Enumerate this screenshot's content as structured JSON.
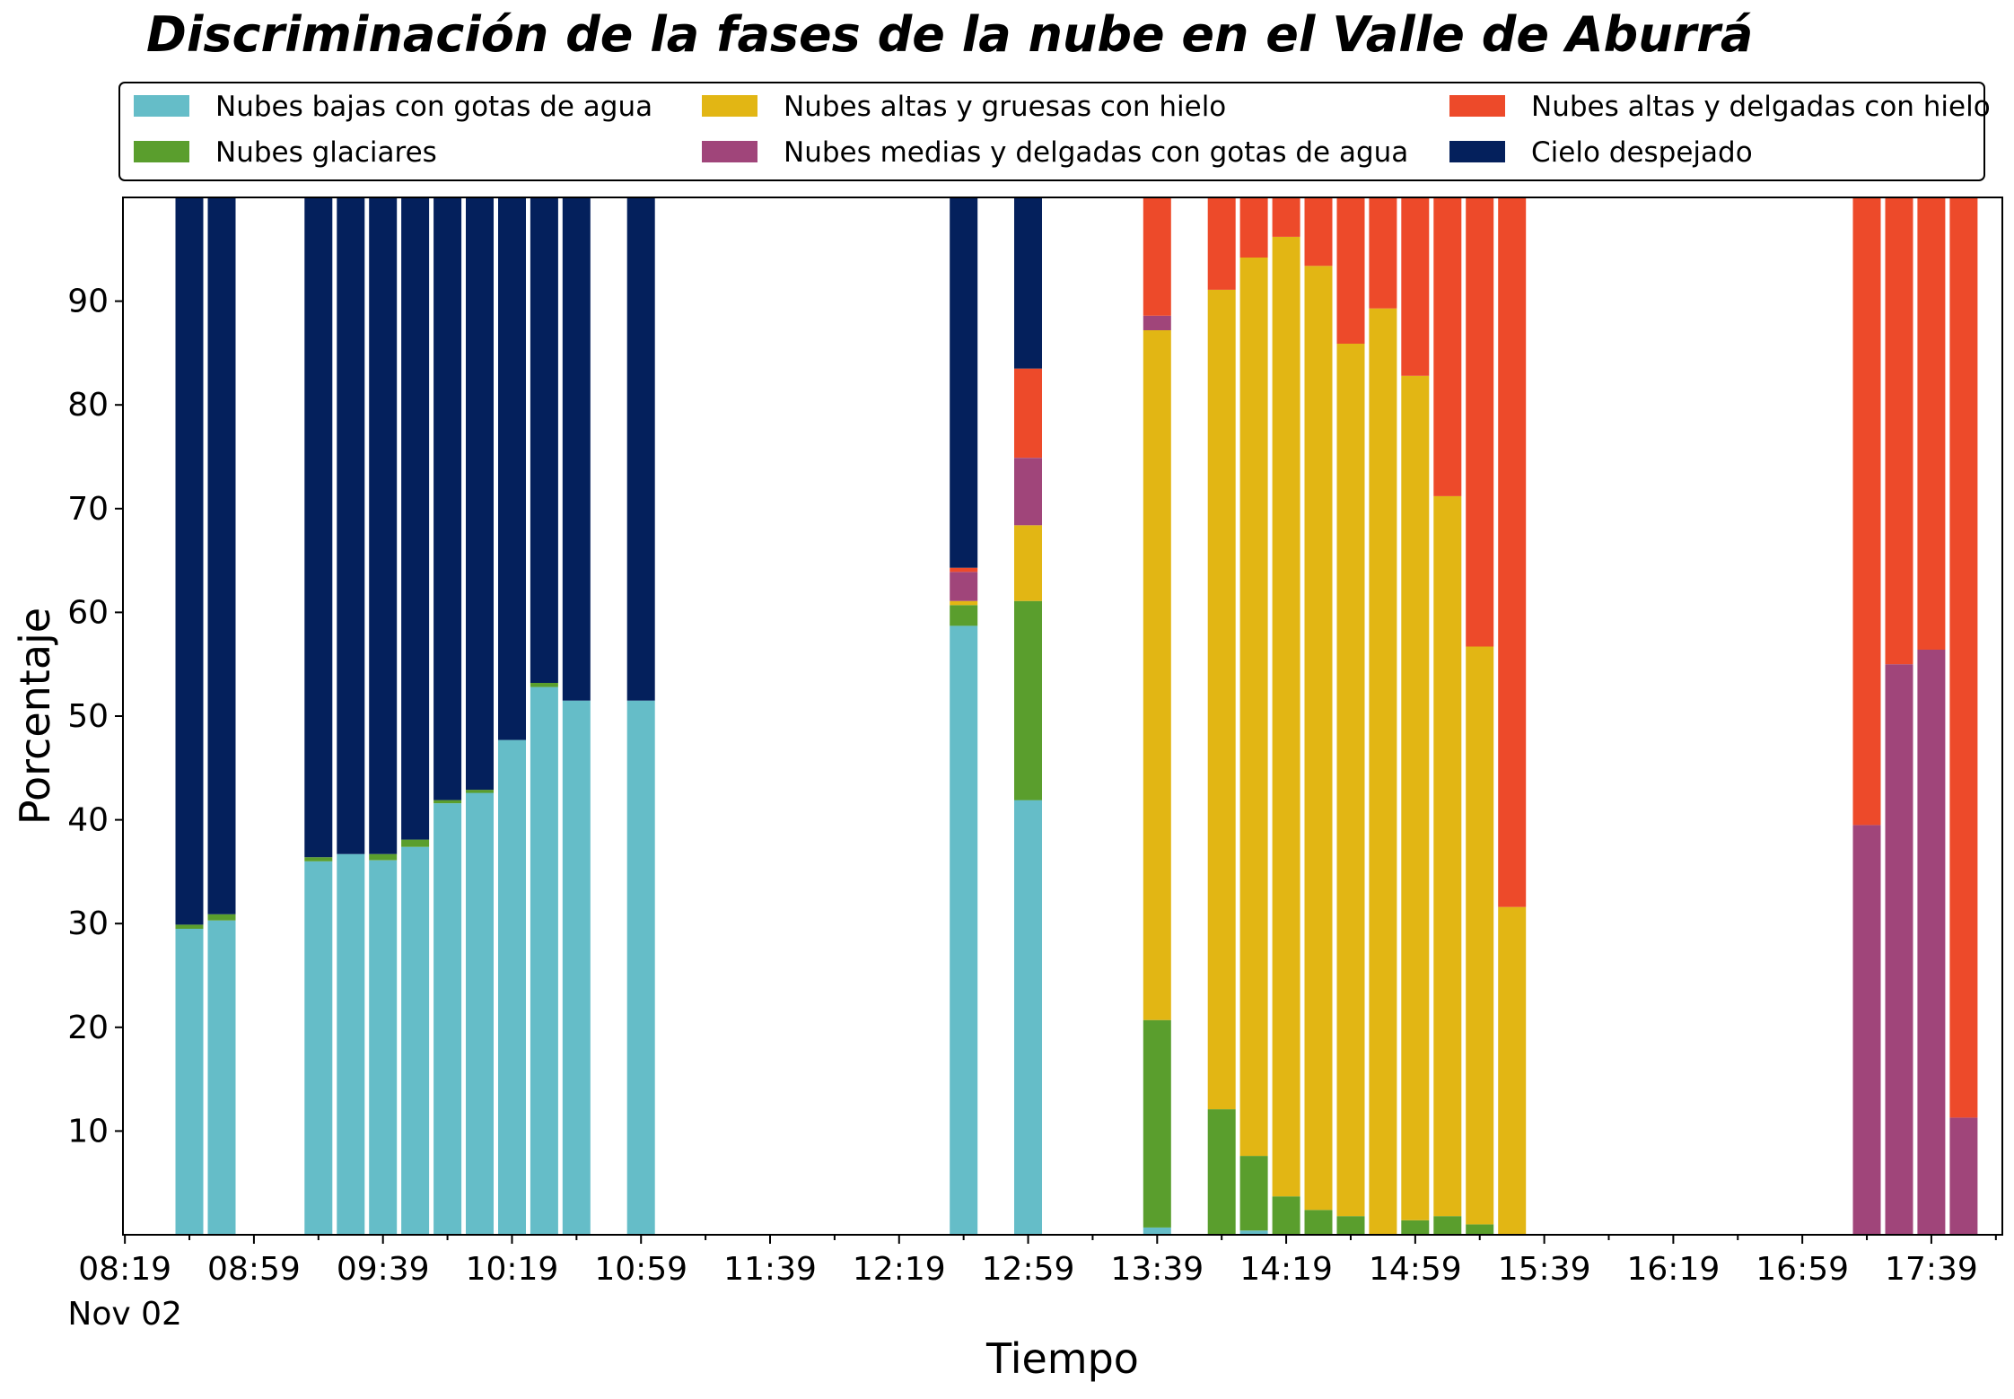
{
  "chart_data": {
    "type": "bar",
    "stacked": true,
    "title": "Discriminación de la fases de la nube en el Valle de Aburrá",
    "xlabel": "Tiempo",
    "ylabel": "Porcentaje",
    "ylim": [
      0,
      100
    ],
    "yticks": [
      10,
      20,
      30,
      40,
      50,
      60,
      70,
      80,
      90
    ],
    "xticks": [
      "08:19",
      "08:59",
      "09:39",
      "10:19",
      "10:59",
      "11:39",
      "12:19",
      "12:59",
      "13:39",
      "14:19",
      "14:59",
      "15:39",
      "16:19",
      "16:59",
      "17:39"
    ],
    "xtick_sublabel": "Nov 02",
    "grid": false,
    "legend_position": "top, above plot",
    "x": [
      "08:39",
      "08:49",
      "09:09",
      "09:19",
      "09:29",
      "09:39",
      "09:49",
      "09:59",
      "10:09",
      "10:19",
      "10:29",
      "10:39",
      "10:49",
      "10:59",
      "12:39",
      "12:49",
      "12:59",
      "13:09",
      "13:19",
      "13:29",
      "13:39",
      "13:49",
      "13:59",
      "14:09",
      "14:19",
      "14:29",
      "14:39",
      "14:49",
      "14:59",
      "15:09",
      "15:19",
      "15:29",
      "17:19",
      "17:29",
      "17:39",
      "17:49"
    ],
    "series": [
      {
        "name": "Nubes bajas con gotas de agua",
        "color": "#65bdc8",
        "values": [
          29.5,
          30.3,
          null,
          36.0,
          36.7,
          36.1,
          37.4,
          41.6,
          42.6,
          47.7,
          52.8,
          51.5,
          null,
          51.5,
          58.7,
          null,
          41.9,
          null,
          null,
          null,
          0.7,
          null,
          0,
          0.4,
          0,
          0,
          0,
          0,
          0,
          0,
          0,
          0,
          0,
          0,
          0,
          0
        ]
      },
      {
        "name": "Nubes glaciares",
        "color": "#5a9e2d",
        "values": [
          0.4,
          0.6,
          null,
          0.4,
          0,
          0.6,
          0.7,
          0.3,
          0.3,
          0,
          0.4,
          0,
          null,
          0,
          2.0,
          null,
          19.2,
          null,
          null,
          null,
          20.0,
          null,
          12.1,
          7.2,
          3.7,
          2.4,
          1.8,
          0,
          1.4,
          1.8,
          1.0,
          0,
          0,
          0,
          0,
          0
        ]
      },
      {
        "name": "Nubes altas y gruesas con hielo",
        "color": "#e2b614",
        "values": [
          0,
          0,
          null,
          0,
          0,
          0,
          0,
          0,
          0,
          0,
          0,
          0,
          null,
          0,
          0.4,
          null,
          7.3,
          null,
          null,
          null,
          66.5,
          null,
          79.0,
          86.6,
          92.5,
          91.0,
          84.1,
          89.3,
          81.4,
          69.4,
          55.7,
          31.6,
          0,
          0,
          0,
          0
        ]
      },
      {
        "name": "Nubes medias y delgadas con gotas de agua",
        "color": "#a0457a",
        "values": [
          0,
          0,
          null,
          0,
          0,
          0,
          0,
          0,
          0,
          0,
          0,
          0,
          null,
          0,
          2.8,
          null,
          6.5,
          null,
          null,
          null,
          1.4,
          null,
          0,
          0,
          0,
          0,
          0,
          0,
          0,
          0,
          0,
          0,
          39.5,
          55.0,
          56.4,
          11.3
        ]
      },
      {
        "name": "Nubes altas y delgadas con hielo",
        "color": "#ed4a2a",
        "values": [
          0,
          0,
          null,
          0,
          0,
          0,
          0,
          0,
          0,
          0,
          0,
          0,
          null,
          0,
          0.4,
          null,
          8.6,
          null,
          null,
          null,
          11.4,
          null,
          8.9,
          5.8,
          3.8,
          6.6,
          14.1,
          10.7,
          17.2,
          28.8,
          43.3,
          68.4,
          60.5,
          45.0,
          43.6,
          88.7
        ]
      },
      {
        "name": "Cielo despejado",
        "color": "#04205c",
        "values": [
          70.1,
          69.1,
          null,
          63.6,
          63.3,
          63.3,
          61.9,
          58.1,
          57.1,
          52.3,
          46.8,
          48.5,
          null,
          48.5,
          35.7,
          null,
          16.5,
          null,
          null,
          null,
          0,
          null,
          0,
          0,
          0,
          0,
          0,
          0,
          0,
          0,
          0,
          0,
          0,
          0,
          0,
          0
        ]
      }
    ]
  }
}
